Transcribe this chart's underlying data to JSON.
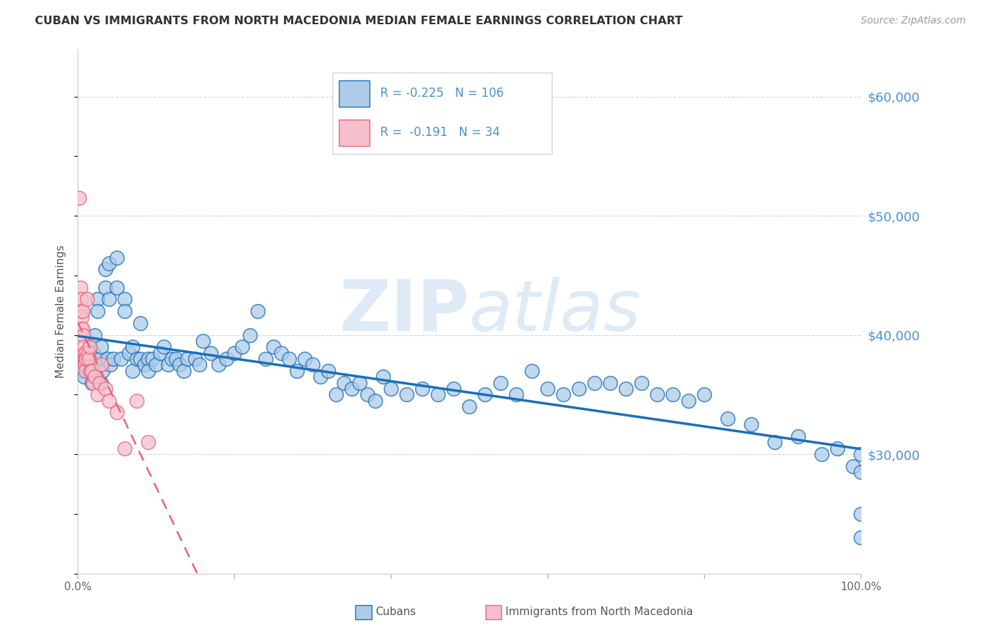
{
  "title": "CUBAN VS IMMIGRANTS FROM NORTH MACEDONIA MEDIAN FEMALE EARNINGS CORRELATION CHART",
  "source": "Source: ZipAtlas.com",
  "ylabel": "Median Female Earnings",
  "yticks": [
    30000,
    40000,
    50000,
    60000
  ],
  "ytick_labels": [
    "$30,000",
    "$40,000",
    "$50,000",
    "$60,000"
  ],
  "legend_entry1": {
    "label": "Cubans",
    "R": "-0.225",
    "N": "106",
    "color": "#aecce8",
    "line_color": "#1a6fba"
  },
  "legend_entry2": {
    "label": "Immigrants from North Macedonia",
    "R": "-0.191",
    "N": "34",
    "color": "#f5bfcc",
    "line_color": "#e8637a"
  },
  "background_color": "#ffffff",
  "grid_color": "#c8c8c8",
  "title_color": "#333333",
  "watermark": "ZIPatlas",
  "ylim_min": 20000,
  "ylim_max": 64000,
  "xlim_min": 0,
  "xlim_max": 100,
  "cubans_x": [
    0.5,
    0.5,
    0.8,
    1.0,
    1.2,
    1.5,
    1.5,
    1.8,
    2.0,
    2.0,
    2.2,
    2.5,
    2.5,
    2.8,
    3.0,
    3.0,
    3.2,
    3.5,
    3.5,
    3.8,
    4.0,
    4.0,
    4.2,
    4.5,
    5.0,
    5.0,
    5.5,
    6.0,
    6.0,
    6.5,
    7.0,
    7.0,
    7.5,
    8.0,
    8.0,
    8.5,
    9.0,
    9.0,
    9.5,
    10.0,
    10.5,
    11.0,
    11.5,
    12.0,
    12.5,
    13.0,
    13.5,
    14.0,
    15.0,
    15.5,
    16.0,
    17.0,
    18.0,
    19.0,
    20.0,
    21.0,
    22.0,
    23.0,
    24.0,
    25.0,
    26.0,
    27.0,
    28.0,
    29.0,
    30.0,
    31.0,
    32.0,
    33.0,
    34.0,
    35.0,
    36.0,
    37.0,
    38.0,
    39.0,
    40.0,
    42.0,
    44.0,
    46.0,
    48.0,
    50.0,
    52.0,
    54.0,
    56.0,
    58.0,
    60.0,
    62.0,
    64.0,
    66.0,
    68.0,
    70.0,
    72.0,
    74.0,
    76.0,
    78.0,
    80.0,
    83.0,
    86.0,
    89.0,
    92.0,
    95.0,
    97.0,
    99.0,
    100.0,
    100.0,
    100.0,
    100.0
  ],
  "cubans_y": [
    38000,
    37000,
    36500,
    37500,
    38000,
    39000,
    37000,
    36000,
    38500,
    37500,
    40000,
    43000,
    42000,
    38000,
    39000,
    36000,
    37000,
    44000,
    45500,
    38000,
    46000,
    43000,
    37500,
    38000,
    46500,
    44000,
    38000,
    43000,
    42000,
    38500,
    39000,
    37000,
    38000,
    41000,
    38000,
    37500,
    38000,
    37000,
    38000,
    37500,
    38500,
    39000,
    37500,
    38000,
    38000,
    37500,
    37000,
    38000,
    38000,
    37500,
    39500,
    38500,
    37500,
    38000,
    38500,
    39000,
    40000,
    42000,
    38000,
    39000,
    38500,
    38000,
    37000,
    38000,
    37500,
    36500,
    37000,
    35000,
    36000,
    35500,
    36000,
    35000,
    34500,
    36500,
    35500,
    35000,
    35500,
    35000,
    35500,
    34000,
    35000,
    36000,
    35000,
    37000,
    35500,
    35000,
    35500,
    36000,
    36000,
    35500,
    36000,
    35000,
    35000,
    34500,
    35000,
    33000,
    32500,
    31000,
    31500,
    30000,
    30500,
    29000,
    28500,
    25000,
    23000,
    30000
  ],
  "macedonian_x": [
    0.2,
    0.3,
    0.4,
    0.4,
    0.5,
    0.5,
    0.6,
    0.6,
    0.7,
    0.7,
    0.8,
    0.8,
    0.9,
    0.9,
    1.0,
    1.0,
    1.1,
    1.2,
    1.3,
    1.4,
    1.5,
    1.6,
    1.8,
    2.0,
    2.2,
    2.5,
    2.8,
    3.0,
    3.5,
    4.0,
    5.0,
    6.0,
    7.5,
    9.0
  ],
  "macedonian_y": [
    51500,
    44000,
    43000,
    42000,
    41500,
    40500,
    40500,
    42000,
    40000,
    38500,
    39000,
    38000,
    38000,
    37500,
    38500,
    37000,
    38000,
    43000,
    38500,
    38000,
    39000,
    37000,
    37000,
    36000,
    36500,
    35000,
    36000,
    37500,
    35500,
    34500,
    33500,
    30500,
    34500,
    31000
  ]
}
